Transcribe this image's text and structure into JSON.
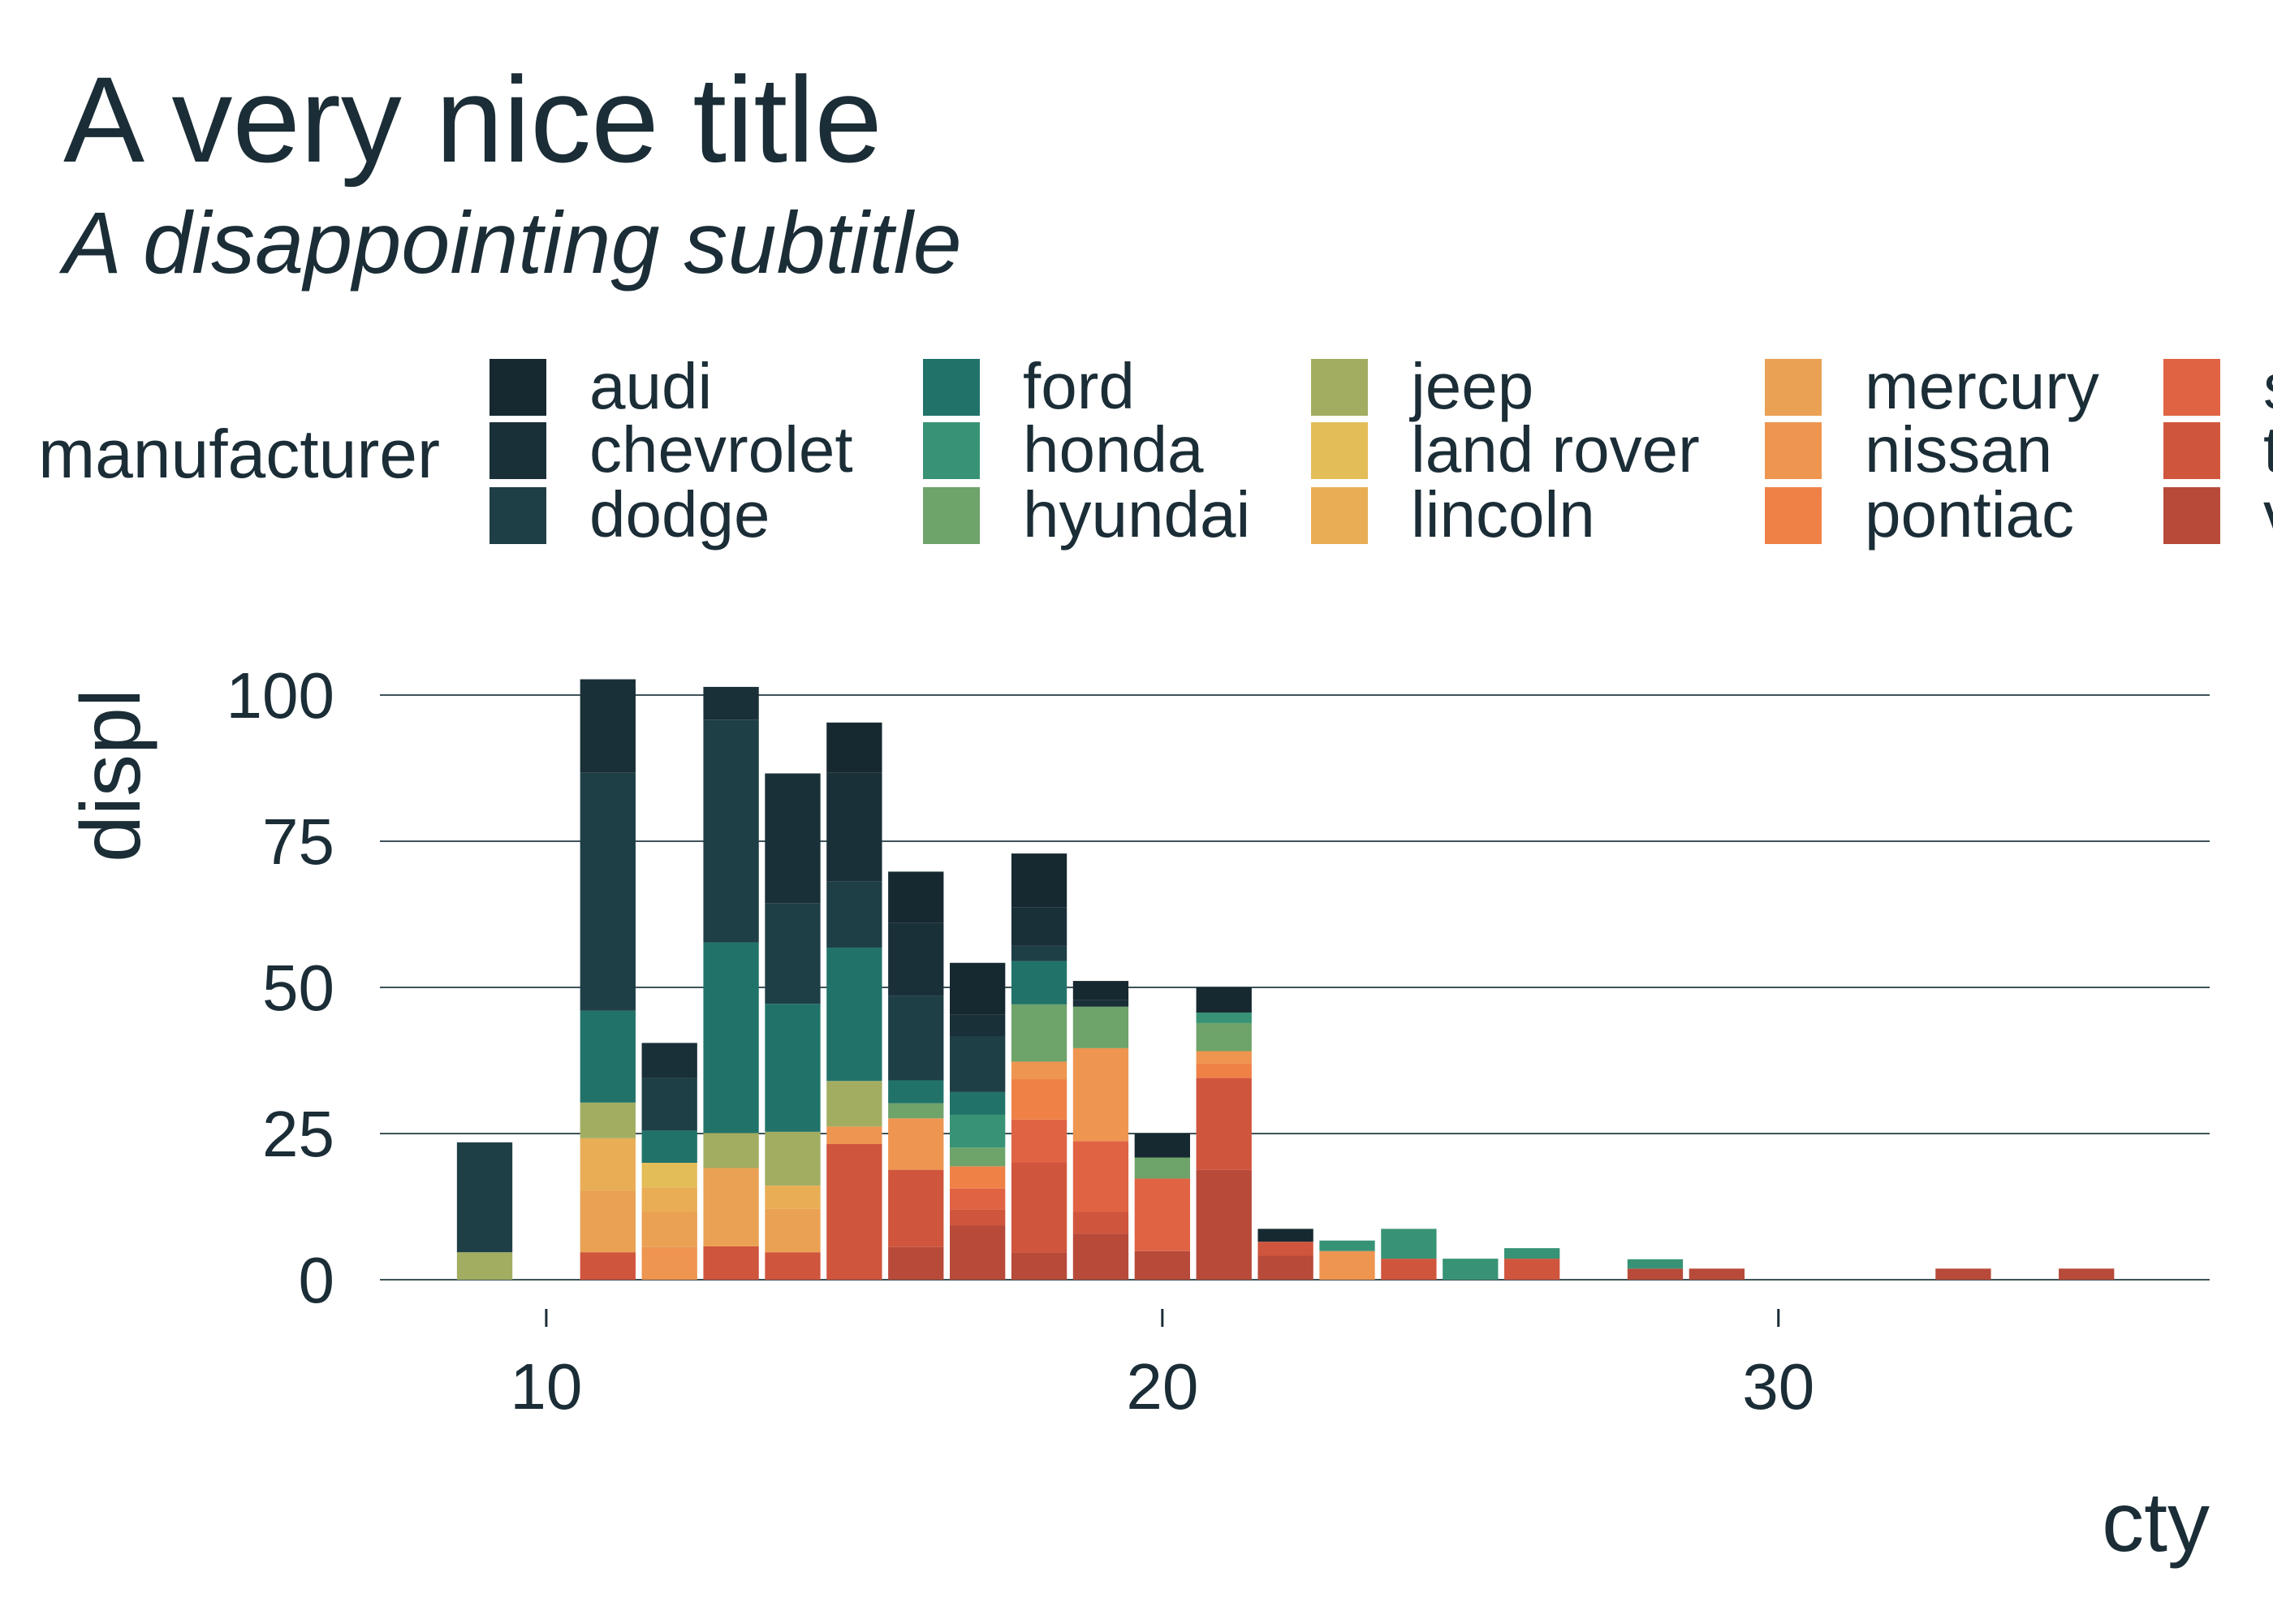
{
  "title": "A very nice title",
  "subtitle": "A disappointing subtitle",
  "chart_data": {
    "type": "bar",
    "xlabel": "cty",
    "ylabel": "displ",
    "xlim": [
      7.3,
      37
    ],
    "ylim": [
      0,
      100
    ],
    "x_ticks": [
      10,
      20,
      30
    ],
    "y_ticks": [
      0,
      25,
      50,
      75,
      100
    ],
    "bin_width": 1,
    "grid": "horizontal-major",
    "legend_title": "manufacturer",
    "legend_position": "top",
    "legend_columns": 5,
    "manufacturers": [
      "audi",
      "chevrolet",
      "dodge",
      "ford",
      "honda",
      "hyundai",
      "jeep",
      "land rover",
      "lincoln",
      "mercury",
      "nissan",
      "pontiac",
      "subaru",
      "toyota",
      "volkswagen"
    ],
    "legend_entries": [
      "audi",
      "chevrolet",
      "dodge",
      "ford",
      "honda",
      "hyundai",
      "jeep",
      "land rover",
      "lincoln",
      "mercury",
      "nissan",
      "pontiac",
      "s",
      "t",
      "v"
    ],
    "colors": {
      "audi": "#172930",
      "chevrolet": "#1a3039",
      "dodge": "#1f3f47",
      "ford": "#21736a",
      "honda": "#389376",
      "hyundai": "#6ea36a",
      "jeep": "#a2ad62",
      "land rover": "#e3bd58",
      "lincoln": "#e9ae55",
      "mercury": "#eaa153",
      "nissan": "#ee9550",
      "pontiac": "#ef8147",
      "subaru": "#e06344",
      "toyota": "#d0553d",
      "volkswagen": "#b84a3a"
    },
    "stacks": [
      {
        "x": 9,
        "segments": [
          {
            "m": "jeep",
            "v": 4.7
          },
          {
            "m": "dodge",
            "v": 18.8
          }
        ]
      },
      {
        "x": 11,
        "segments": [
          {
            "m": "toyota",
            "v": 4.7
          },
          {
            "m": "mercury",
            "v": 10.5
          },
          {
            "m": "lincoln",
            "v": 9.0
          },
          {
            "m": "jeep",
            "v": 6.1
          },
          {
            "m": "ford",
            "v": 15.7
          },
          {
            "m": "dodge",
            "v": 40.7
          },
          {
            "m": "chevrolet",
            "v": 16.0
          }
        ]
      },
      {
        "x": 12,
        "segments": [
          {
            "m": "nissan",
            "v": 5.6
          },
          {
            "m": "mercury",
            "v": 6.0
          },
          {
            "m": "lincoln",
            "v": 4.2
          },
          {
            "m": "land rover",
            "v": 4.2
          },
          {
            "m": "ford",
            "v": 5.5
          },
          {
            "m": "dodge",
            "v": 9.0
          },
          {
            "m": "chevrolet",
            "v": 6.0
          }
        ]
      },
      {
        "x": 13,
        "segments": [
          {
            "m": "toyota",
            "v": 5.7
          },
          {
            "m": "mercury",
            "v": 13.4
          },
          {
            "m": "jeep",
            "v": 6.0
          },
          {
            "m": "ford",
            "v": 32.6
          },
          {
            "m": "dodge",
            "v": 38.1
          },
          {
            "m": "chevrolet",
            "v": 5.6
          }
        ]
      },
      {
        "x": 14,
        "segments": [
          {
            "m": "toyota",
            "v": 4.7
          },
          {
            "m": "mercury",
            "v": 7.4
          },
          {
            "m": "lincoln",
            "v": 4.0
          },
          {
            "m": "jeep",
            "v": 9.2
          },
          {
            "m": "ford",
            "v": 21.9
          },
          {
            "m": "dodge",
            "v": 17.2
          },
          {
            "m": "chevrolet",
            "v": 22.2
          }
        ]
      },
      {
        "x": 15,
        "segments": [
          {
            "m": "toyota",
            "v": 23.2
          },
          {
            "m": "nissan",
            "v": 3.0
          },
          {
            "m": "jeep",
            "v": 7.8
          },
          {
            "m": "ford",
            "v": 22.8
          },
          {
            "m": "dodge",
            "v": 11.3
          },
          {
            "m": "chevrolet",
            "v": 18.6
          },
          {
            "m": "audi",
            "v": 8.6
          }
        ]
      },
      {
        "x": 16,
        "segments": [
          {
            "m": "volkswagen",
            "v": 5.6
          },
          {
            "m": "toyota",
            "v": 13.2
          },
          {
            "m": "nissan",
            "v": 8.8
          },
          {
            "m": "hyundai",
            "v": 2.6
          },
          {
            "m": "ford",
            "v": 3.9
          },
          {
            "m": "dodge",
            "v": 14.4
          },
          {
            "m": "chevrolet",
            "v": 12.5
          },
          {
            "m": "audi",
            "v": 8.8
          }
        ]
      },
      {
        "x": 17,
        "segments": [
          {
            "m": "volkswagen",
            "v": 9.3
          },
          {
            "m": "toyota",
            "v": 2.7
          },
          {
            "m": "subaru",
            "v": 3.6
          },
          {
            "m": "pontiac",
            "v": 3.8
          },
          {
            "m": "hyundai",
            "v": 3.2
          },
          {
            "m": "honda",
            "v": 5.6
          },
          {
            "m": "ford",
            "v": 3.9
          },
          {
            "m": "dodge",
            "v": 9.5
          },
          {
            "m": "chevrolet",
            "v": 3.7
          },
          {
            "m": "audi",
            "v": 8.9
          }
        ]
      },
      {
        "x": 18,
        "segments": [
          {
            "m": "volkswagen",
            "v": 4.7
          },
          {
            "m": "toyota",
            "v": 15.3
          },
          {
            "m": "subaru",
            "v": 7.4
          },
          {
            "m": "pontiac",
            "v": 6.9
          },
          {
            "m": "nissan",
            "v": 3.0
          },
          {
            "m": "hyundai",
            "v": 9.8
          },
          {
            "m": "ford",
            "v": 7.4
          },
          {
            "m": "dodge",
            "v": 2.6
          },
          {
            "m": "chevrolet",
            "v": 6.6
          },
          {
            "m": "audi",
            "v": 9.2
          }
        ]
      },
      {
        "x": 19,
        "segments": [
          {
            "m": "volkswagen",
            "v": 7.9
          },
          {
            "m": "toyota",
            "v": 3.7
          },
          {
            "m": "subaru",
            "v": 12.1
          },
          {
            "m": "nissan",
            "v": 15.9
          },
          {
            "m": "hyundai",
            "v": 7.1
          },
          {
            "m": "chevrolet",
            "v": 1.2
          },
          {
            "m": "audi",
            "v": 3.2
          }
        ]
      },
      {
        "x": 20,
        "segments": [
          {
            "m": "volkswagen",
            "v": 4.9
          },
          {
            "m": "subaru",
            "v": 12.4
          },
          {
            "m": "hyundai",
            "v": 3.6
          },
          {
            "m": "audi",
            "v": 4.1
          }
        ]
      },
      {
        "x": 21,
        "segments": [
          {
            "m": "volkswagen",
            "v": 18.8
          },
          {
            "m": "toyota",
            "v": 15.7
          },
          {
            "m": "pontiac",
            "v": 2.5
          },
          {
            "m": "nissan",
            "v": 2.1
          },
          {
            "m": "hyundai",
            "v": 4.8
          },
          {
            "m": "honda",
            "v": 1.8
          },
          {
            "m": "audi",
            "v": 4.3
          }
        ]
      },
      {
        "x": 22,
        "segments": [
          {
            "m": "volkswagen",
            "v": 4.1
          },
          {
            "m": "toyota",
            "v": 2.4
          },
          {
            "m": "audi",
            "v": 2.2
          }
        ]
      },
      {
        "x": 23,
        "segments": [
          {
            "m": "nissan",
            "v": 4.9
          },
          {
            "m": "honda",
            "v": 1.8
          }
        ]
      },
      {
        "x": 24,
        "segments": [
          {
            "m": "toyota",
            "v": 3.6
          },
          {
            "m": "honda",
            "v": 5.1
          }
        ]
      },
      {
        "x": 25,
        "segments": [
          {
            "m": "honda",
            "v": 3.6
          }
        ]
      },
      {
        "x": 26,
        "segments": [
          {
            "m": "toyota",
            "v": 3.6
          },
          {
            "m": "honda",
            "v": 1.8
          }
        ]
      },
      {
        "x": 28,
        "segments": [
          {
            "m": "volkswagen",
            "v": 1.9
          },
          {
            "m": "honda",
            "v": 1.6
          }
        ]
      },
      {
        "x": 29,
        "segments": [
          {
            "m": "volkswagen",
            "v": 1.9
          }
        ]
      },
      {
        "x": 33,
        "segments": [
          {
            "m": "volkswagen",
            "v": 1.9
          }
        ]
      },
      {
        "x": 35,
        "segments": [
          {
            "m": "volkswagen",
            "v": 1.9
          }
        ]
      }
    ]
  }
}
